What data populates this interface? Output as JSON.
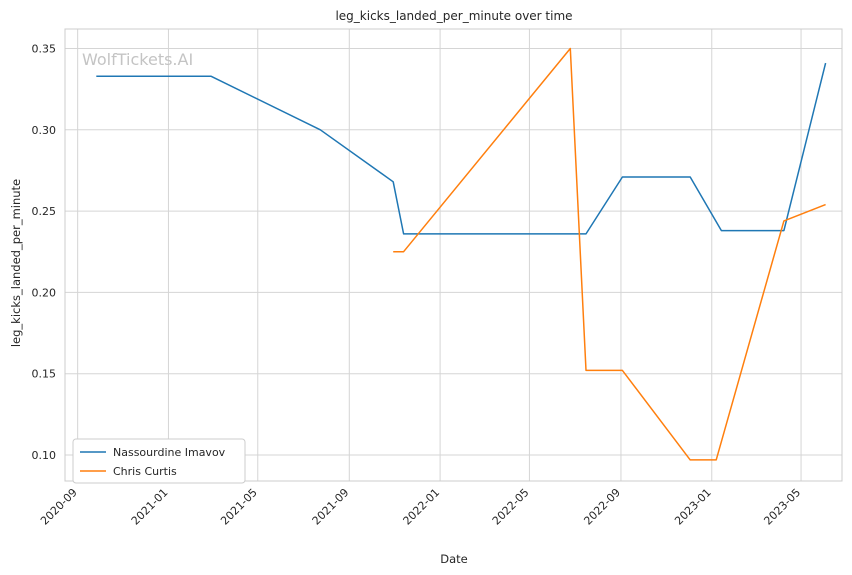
{
  "chart_data": {
    "type": "line",
    "title": "leg_kicks_landed_per_minute over time",
    "xlabel": "Date",
    "ylabel": "leg_kicks_landed_per_minute",
    "watermark": "WolfTickets.AI",
    "x_ticks": [
      "2020-09",
      "2021-01",
      "2021-05",
      "2021-09",
      "2022-01",
      "2022-05",
      "2022-09",
      "2023-01",
      "2023-05"
    ],
    "y_ticks": [
      "0.10",
      "0.15",
      "0.20",
      "0.25",
      "0.30",
      "0.35"
    ],
    "xlim": [
      "2020-08-15",
      "2023-06-25"
    ],
    "ylim": [
      0.084,
      0.362
    ],
    "grid": true,
    "legend_position": "lower-left",
    "series": [
      {
        "name": "Nassourdine Imavov",
        "color": "#1f77b4",
        "points": [
          {
            "x": "2020-09-26",
            "y": 0.333
          },
          {
            "x": "2021-02-27",
            "y": 0.333
          },
          {
            "x": "2021-07-24",
            "y": 0.3
          },
          {
            "x": "2021-10-30",
            "y": 0.268
          },
          {
            "x": "2021-11-13",
            "y": 0.236
          },
          {
            "x": "2022-07-16",
            "y": 0.236
          },
          {
            "x": "2022-09-03",
            "y": 0.271
          },
          {
            "x": "2022-12-03",
            "y": 0.271
          },
          {
            "x": "2023-01-14",
            "y": 0.238
          },
          {
            "x": "2023-04-08",
            "y": 0.238
          },
          {
            "x": "2023-06-03",
            "y": 0.341
          }
        ]
      },
      {
        "name": "Chris Curtis",
        "color": "#ff7f0e",
        "points": [
          {
            "x": "2021-10-30",
            "y": 0.225
          },
          {
            "x": "2021-11-13",
            "y": 0.225
          },
          {
            "x": "2022-06-25",
            "y": 0.35
          },
          {
            "x": "2022-07-16",
            "y": 0.152
          },
          {
            "x": "2022-09-03",
            "y": 0.152
          },
          {
            "x": "2022-12-03",
            "y": 0.097
          },
          {
            "x": "2023-01-07",
            "y": 0.097
          },
          {
            "x": "2023-04-08",
            "y": 0.244
          },
          {
            "x": "2023-06-03",
            "y": 0.254
          }
        ]
      }
    ]
  }
}
